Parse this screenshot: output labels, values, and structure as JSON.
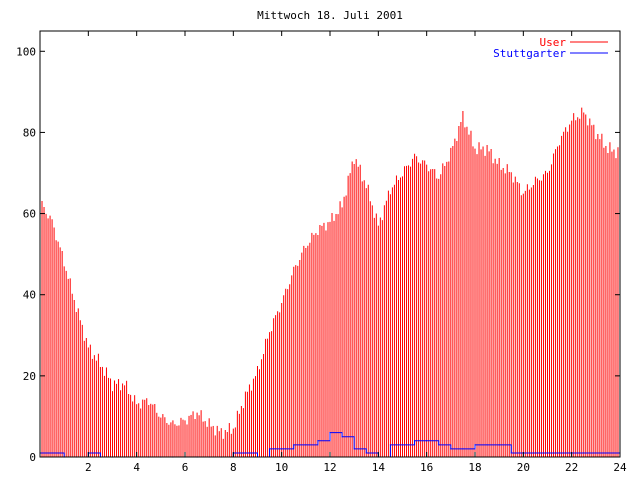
{
  "chart_data": {
    "type": "bar",
    "title": "Mittwoch 18. Juli 2001",
    "xlabel": "",
    "ylabel": "",
    "xlim": [
      0,
      24
    ],
    "ylim": [
      0,
      105
    ],
    "x_ticks": [
      2,
      4,
      6,
      8,
      10,
      12,
      14,
      16,
      18,
      20,
      22,
      24
    ],
    "x_tick_labels": [
      "2",
      "4",
      "6",
      "8",
      "10",
      "12",
      "14",
      "16",
      "18",
      "20",
      "22",
      "24"
    ],
    "y_ticks": [
      0,
      20,
      40,
      60,
      80,
      100
    ],
    "y_tick_labels": [
      "0",
      "20",
      "40",
      "60",
      "80",
      "100"
    ],
    "legend_position": "top-right",
    "series": [
      {
        "name": "User",
        "style": "impulses",
        "color": "#ff0000",
        "x": [
          0,
          0.5,
          1,
          1.5,
          2,
          2.5,
          3,
          3.5,
          4,
          4.5,
          5,
          5.5,
          6,
          6.5,
          7,
          7.5,
          8,
          8.5,
          9,
          9.5,
          10,
          10.5,
          11,
          11.5,
          12,
          12.5,
          13,
          13.5,
          14,
          14.5,
          15,
          15.5,
          16,
          16.5,
          17,
          17.5,
          18,
          18.5,
          19,
          19.5,
          20,
          20.5,
          21,
          21.5,
          22,
          22.5,
          23,
          23.5,
          24
        ],
        "values": [
          63,
          58,
          48,
          37,
          27,
          23,
          18,
          18,
          13,
          14,
          10,
          8,
          9,
          11,
          8,
          6,
          7,
          15,
          21,
          31,
          38,
          46,
          52,
          56,
          58,
          62,
          74,
          67,
          57,
          66,
          70,
          74,
          72,
          69,
          75,
          84,
          76,
          76,
          72,
          70,
          65,
          68,
          70,
          78,
          83,
          85,
          80,
          76,
          75
        ]
      },
      {
        "name": "Stuttgarter",
        "style": "line",
        "color": "#0000ff",
        "x": [
          0,
          0.5,
          1,
          1.5,
          2,
          2.5,
          3,
          3.5,
          4,
          4.5,
          5,
          5.5,
          6,
          6.5,
          7,
          7.5,
          8,
          8.5,
          9,
          9.5,
          10,
          10.5,
          11,
          11.5,
          12,
          12.5,
          13,
          13.5,
          14,
          14.5,
          15,
          15.5,
          16,
          16.5,
          17,
          17.5,
          18,
          18.5,
          19,
          19.5,
          20,
          20.5,
          21,
          21.5,
          22,
          22.5,
          23,
          23.5,
          24
        ],
        "values": [
          1,
          1,
          0,
          0,
          1,
          0,
          0,
          0,
          0,
          0,
          0,
          0,
          0,
          0,
          0,
          0,
          1,
          1,
          0,
          2,
          2,
          3,
          3,
          4,
          6,
          5,
          2,
          1,
          0,
          3,
          3,
          4,
          4,
          3,
          2,
          2,
          3,
          3,
          3,
          1,
          1,
          1,
          1,
          1,
          1,
          1,
          1,
          1,
          1
        ]
      }
    ]
  }
}
